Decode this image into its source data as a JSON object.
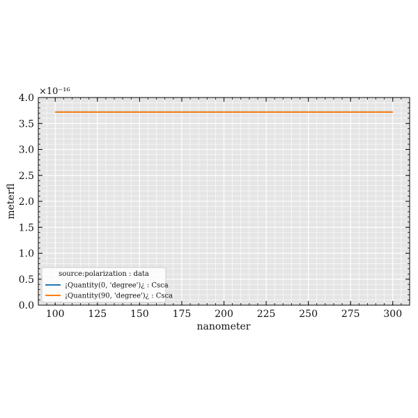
{
  "chart_data": {
    "type": "line",
    "xlabel": "nanometer",
    "ylabel": "meterﬂ",
    "offset_text": "×10⁻¹⁶",
    "xlim": [
      90,
      310
    ],
    "ylim": [
      0.0,
      4.0
    ],
    "x_ticks": [
      100,
      125,
      150,
      175,
      200,
      225,
      250,
      275,
      300
    ],
    "y_ticks": [
      0.0,
      0.5,
      1.0,
      1.5,
      2.0,
      2.5,
      3.0,
      3.5,
      4.0
    ],
    "x_tick_labels": [
      "100",
      "125",
      "150",
      "175",
      "200",
      "225",
      "250",
      "275",
      "300"
    ],
    "y_tick_labels": [
      "0.0",
      "0.5",
      "1.0",
      "1.5",
      "2.0",
      "2.5",
      "3.0",
      "3.5",
      "4.0"
    ],
    "grid": true,
    "legend": {
      "title": "source:polarization : data",
      "placement": "lower-left"
    },
    "series": [
      {
        "name": "¡Quantity(0, 'degree')¿ : Csca",
        "color": "#1f77b4",
        "x": [
          100,
          300
        ],
        "y": [
          3.72,
          3.72
        ]
      },
      {
        "name": "¡Quantity(90, 'degree')¿ : Csca",
        "color": "#ff7f0e",
        "x": [
          100,
          300
        ],
        "y": [
          3.72,
          3.72
        ]
      }
    ]
  }
}
